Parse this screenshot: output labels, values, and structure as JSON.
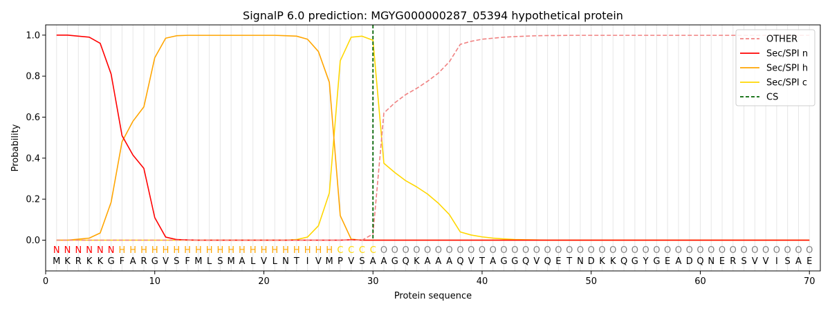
{
  "chart_data": {
    "type": "line",
    "title": "SignalP 6.0 prediction: MGYG000000287_05394 hypothetical protein",
    "xlabel": "Protein sequence",
    "ylabel": "Probability",
    "xlim": [
      0,
      71
    ],
    "ylim": [
      -0.15,
      1.05
    ],
    "x_ticks": [
      "0",
      "10",
      "20",
      "30",
      "40",
      "50",
      "60",
      "70"
    ],
    "y_ticks": [
      "0.0",
      "0.2",
      "0.4",
      "0.6",
      "0.8",
      "1.0"
    ],
    "grid": "vertical lines at each residue",
    "legend_position": "top-right",
    "sequence": [
      "M",
      "K",
      "R",
      "K",
      "K",
      "G",
      "F",
      "A",
      "R",
      "G",
      "V",
      "S",
      "F",
      "M",
      "L",
      "S",
      "M",
      "A",
      "L",
      "V",
      "L",
      "N",
      "T",
      "I",
      "V",
      "M",
      "P",
      "V",
      "S",
      "A",
      "A",
      "G",
      "Q",
      "K",
      "A",
      "A",
      "A",
      "Q",
      "V",
      "T",
      "A",
      "G",
      "G",
      "Q",
      "V",
      "Q",
      "E",
      "T",
      "N",
      "D",
      "K",
      "K",
      "Q",
      "G",
      "Y",
      "G",
      "E",
      "A",
      "D",
      "Q",
      "N",
      "E",
      "R",
      "S",
      "V",
      "V",
      "I",
      "S",
      "A",
      "E"
    ],
    "labels": [
      "N",
      "N",
      "N",
      "N",
      "N",
      "N",
      "H",
      "H",
      "H",
      "H",
      "H",
      "H",
      "H",
      "H",
      "H",
      "H",
      "H",
      "H",
      "H",
      "H",
      "H",
      "H",
      "H",
      "H",
      "H",
      "H",
      "C",
      "C",
      "C",
      "C",
      "O",
      "O",
      "O",
      "O",
      "O",
      "O",
      "O",
      "O",
      "O",
      "O",
      "O",
      "O",
      "O",
      "O",
      "O",
      "O",
      "O",
      "O",
      "O",
      "O",
      "O",
      "O",
      "O",
      "O",
      "O",
      "O",
      "O",
      "O",
      "O",
      "O",
      "O",
      "O",
      "O",
      "O",
      "O",
      "O",
      "O",
      "O",
      "O",
      "O"
    ],
    "label_colors": {
      "N": "#ff0000",
      "H": "#ffa500",
      "C": "#ffd700",
      "O": "#808080"
    },
    "x": [
      1,
      2,
      3,
      4,
      5,
      6,
      7,
      8,
      9,
      10,
      11,
      12,
      13,
      14,
      15,
      16,
      17,
      18,
      19,
      20,
      21,
      22,
      23,
      24,
      25,
      26,
      27,
      28,
      29,
      30,
      31,
      32,
      33,
      34,
      35,
      36,
      37,
      38,
      39,
      40,
      41,
      42,
      43,
      44,
      45,
      46,
      47,
      48,
      49,
      50,
      51,
      52,
      53,
      54,
      55,
      56,
      57,
      58,
      59,
      60,
      61,
      62,
      63,
      64,
      65,
      66,
      67,
      68,
      69,
      70
    ],
    "series": [
      {
        "name": "OTHER",
        "color": "#f08080",
        "style": "dashed",
        "values": [
          0,
          0,
          0,
          0,
          0,
          0,
          0,
          0,
          0,
          0,
          0,
          0,
          0,
          0,
          0,
          0,
          0,
          0,
          0,
          0,
          0,
          0,
          0,
          0,
          0,
          0,
          0,
          0,
          0,
          0.03,
          0.62,
          0.67,
          0.71,
          0.74,
          0.775,
          0.815,
          0.87,
          0.955,
          0.97,
          0.98,
          0.985,
          0.99,
          0.993,
          0.995,
          0.997,
          0.998,
          0.998,
          0.999,
          0.999,
          0.999,
          0.999,
          0.999,
          0.999,
          0.999,
          0.999,
          0.999,
          0.999,
          0.999,
          0.999,
          0.999,
          0.999,
          0.999,
          0.999,
          0.999,
          0.999,
          0.999,
          0.999,
          0.999,
          0.999,
          0.999
        ]
      },
      {
        "name": "Sec/SPI n",
        "color": "#ff0000",
        "style": "solid",
        "values": [
          1.0,
          1.0,
          0.995,
          0.99,
          0.96,
          0.81,
          0.51,
          0.415,
          0.35,
          0.11,
          0.015,
          0.003,
          0.001,
          0,
          0,
          0,
          0,
          0,
          0,
          0,
          0,
          0,
          0,
          0,
          0,
          0,
          0,
          0.002,
          0,
          0,
          0,
          0,
          0,
          0,
          0,
          0,
          0,
          0,
          0,
          0,
          0,
          0,
          0,
          0,
          0,
          0,
          0,
          0,
          0,
          0,
          0,
          0,
          0,
          0,
          0,
          0,
          0,
          0,
          0,
          0,
          0,
          0,
          0,
          0,
          0,
          0,
          0,
          0,
          0,
          0
        ]
      },
      {
        "name": "Sec/SPI h",
        "color": "#ffa500",
        "style": "solid",
        "values": [
          0,
          0,
          0.005,
          0.01,
          0.035,
          0.185,
          0.48,
          0.58,
          0.65,
          0.89,
          0.985,
          0.997,
          0.999,
          0.999,
          0.999,
          0.999,
          0.999,
          0.999,
          0.999,
          0.999,
          0.999,
          0.997,
          0.995,
          0.98,
          0.92,
          0.77,
          0.12,
          0.005,
          0,
          0,
          0,
          0,
          0,
          0,
          0,
          0,
          0,
          0,
          0,
          0,
          0,
          0,
          0,
          0,
          0,
          0,
          0,
          0,
          0,
          0,
          0,
          0,
          0,
          0,
          0,
          0,
          0,
          0,
          0,
          0,
          0,
          0,
          0,
          0,
          0,
          0,
          0,
          0,
          0,
          0
        ]
      },
      {
        "name": "Sec/SPI c",
        "color": "#ffd700",
        "style": "solid",
        "values": [
          0,
          0,
          0,
          0,
          0,
          0,
          0,
          0,
          0,
          0,
          0,
          0,
          0,
          0,
          0,
          0,
          0,
          0,
          0,
          0,
          0,
          0,
          0.003,
          0.015,
          0.07,
          0.23,
          0.875,
          0.99,
          0.995,
          0.975,
          0.375,
          0.33,
          0.29,
          0.26,
          0.225,
          0.18,
          0.125,
          0.04,
          0.025,
          0.016,
          0.01,
          0.006,
          0.003,
          0.002,
          0.001,
          0,
          0,
          0,
          0,
          0,
          0,
          0,
          0,
          0,
          0,
          0,
          0,
          0,
          0,
          0,
          0,
          0,
          0,
          0,
          0,
          0,
          0,
          0,
          0,
          0
        ]
      }
    ],
    "cs_line": {
      "name": "CS",
      "x": 30,
      "color": "#006400"
    }
  }
}
